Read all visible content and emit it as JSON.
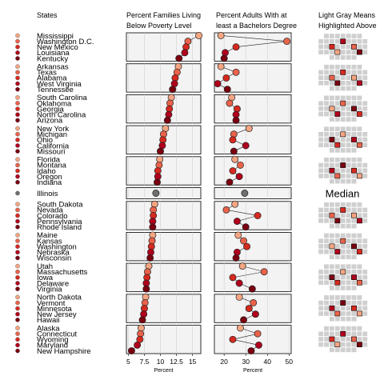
{
  "colors": {
    "rank_palette": [
      "#f4a582",
      "#e8634a",
      "#d6291f",
      "#b0001c",
      "#7a0010"
    ],
    "median": "#6f6f6f",
    "panel_bg": "#f3f3f3",
    "grid": "#ffffff",
    "divider": "#1a1a1a",
    "map_fill": "#cfcfcf",
    "map_stroke": "#ffffff"
  },
  "headers": {
    "states": "States",
    "poverty": [
      "Percent Families Living",
      "Below Poverty Level"
    ],
    "bachelors": [
      "Percent Adults With at",
      "least a Bachelors Degree"
    ],
    "maps": [
      "Light Gray Means",
      "Highlighted Above"
    ]
  },
  "median_label": "Median",
  "chart_data": {
    "type": "linked-micromap dot plot",
    "title": "",
    "sort_by": "Percent Families Living Below Poverty Level (descending)",
    "groups": [
      {
        "states": [
          "Mississippi",
          "Washington D.C.",
          "New Mexico",
          "Louisiana",
          "Kentucky"
        ],
        "poverty": [
          16.0,
          14.3,
          14.0,
          13.8,
          12.9
        ],
        "bachelors": [
          18.5,
          49.0,
          25.5,
          20.5,
          20.0
        ]
      },
      {
        "states": [
          "Arkansas",
          "Texas",
          "Alabama",
          "West Virginia",
          "Tennessee"
        ],
        "poverty": [
          12.8,
          12.6,
          12.3,
          12.2,
          11.9
        ],
        "bachelors": [
          18.5,
          25.5,
          21.0,
          17.0,
          21.5
        ]
      },
      {
        "states": [
          "South Carolina",
          "Oklahoma",
          "Georgia",
          "North Carolina",
          "Arizona"
        ],
        "poverty": [
          11.7,
          11.5,
          11.4,
          11.3,
          11.1
        ],
        "bachelors": [
          23.5,
          22.5,
          26.0,
          25.5,
          25.5
        ]
      },
      {
        "states": [
          "New York",
          "Michigan",
          "Ohio",
          "California",
          "Missouri"
        ],
        "poverty": [
          10.8,
          10.5,
          10.4,
          10.3,
          10.0
        ],
        "bachelors": [
          31.5,
          24.5,
          24.0,
          30.0,
          24.5
        ]
      },
      {
        "states": [
          "Florida",
          "Montana",
          "Idaho",
          "Oregon",
          "Indiana"
        ],
        "poverty": [
          9.9,
          9.8,
          9.6,
          9.6,
          9.5
        ],
        "bachelors": [
          25.0,
          27.5,
          24.0,
          27.0,
          22.5
        ]
      },
      {
        "states": [
          "Illinois"
        ],
        "poverty": [
          9.3
        ],
        "bachelors": [
          29.5
        ],
        "median": true
      },
      {
        "states": [
          "South Dakota",
          "Nevada",
          "Colorado",
          "Pennsylvania",
          "Rhode Island"
        ],
        "poverty": [
          9.1,
          8.9,
          8.9,
          8.8,
          8.8
        ],
        "bachelors": [
          25.0,
          21.0,
          35.5,
          26.0,
          30.0
        ]
      },
      {
        "states": [
          "Maine",
          "Kansas",
          "Washington",
          "Nebraska",
          "Wisconsin"
        ],
        "poverty": [
          8.8,
          8.7,
          8.6,
          8.5,
          8.4
        ],
        "bachelors": [
          26.5,
          29.0,
          30.5,
          26.0,
          25.5
        ]
      },
      {
        "states": [
          "Utah",
          "Massachusetts",
          "Iowa",
          "Delaware",
          "Virginia"
        ],
        "poverty": [
          8.2,
          8.0,
          7.9,
          7.8,
          7.8
        ],
        "bachelors": [
          28.5,
          38.5,
          24.0,
          27.0,
          33.0
        ]
      },
      {
        "states": [
          "North Dakota",
          "Vermont",
          "Minnesota",
          "New Jersey",
          "Hawaii"
        ],
        "poverty": [
          7.7,
          7.6,
          7.5,
          7.4,
          7.2
        ],
        "bachelors": [
          27.0,
          33.5,
          31.5,
          34.5,
          29.0
        ]
      },
      {
        "states": [
          "Alaska",
          "Connecticut",
          "Wyoming",
          "Maryland",
          "New Hampshire"
        ],
        "poverty": [
          7.0,
          6.9,
          6.8,
          6.4,
          5.5
        ],
        "bachelors": [
          27.5,
          35.5,
          24.0,
          36.0,
          32.5
        ]
      }
    ],
    "panels": [
      {
        "measure": "poverty",
        "xlabel": "Percent",
        "xlim": [
          4.7,
          16.3
        ],
        "ticks": [
          5,
          7.5,
          10,
          12.5,
          15
        ],
        "tick_labels": [
          "5",
          "7.5",
          "10",
          "12.5",
          "15"
        ],
        "grid": true
      },
      {
        "measure": "bachelors",
        "xlabel": "Percent",
        "xlim": [
          15.5,
          51
        ],
        "ticks": [
          20,
          30,
          40,
          50
        ],
        "tick_labels": [
          "20",
          "30",
          "40",
          "50"
        ],
        "grid": true
      }
    ]
  }
}
